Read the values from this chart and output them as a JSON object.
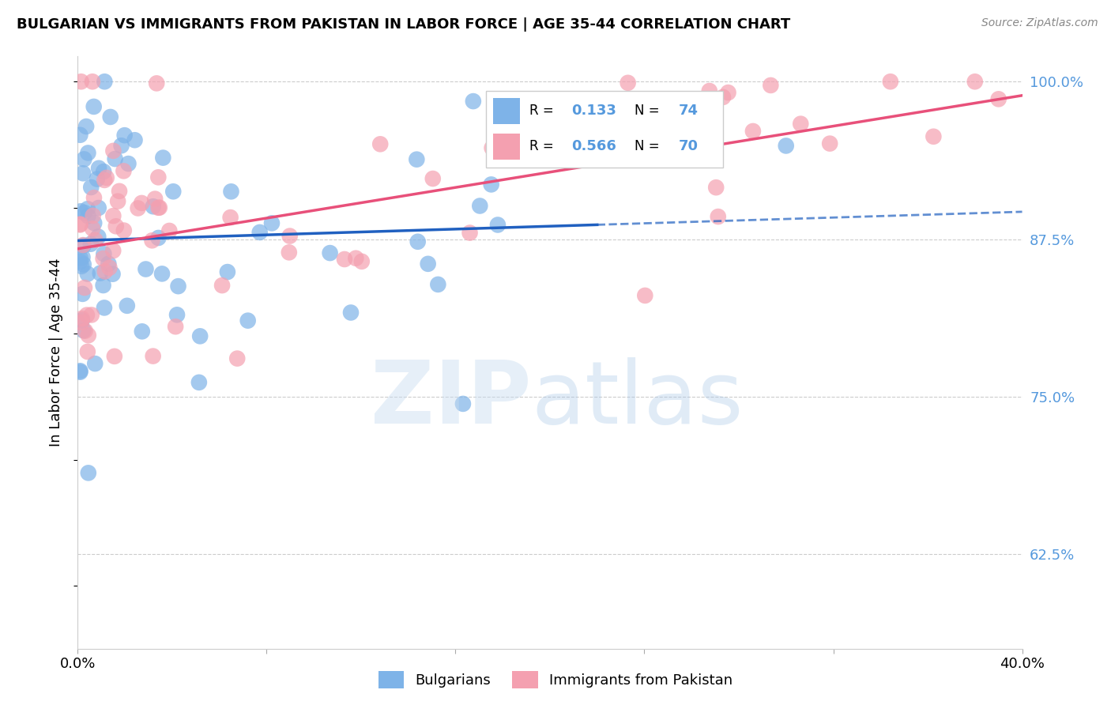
{
  "title": "BULGARIAN VS IMMIGRANTS FROM PAKISTAN IN LABOR FORCE | AGE 35-44 CORRELATION CHART",
  "source": "Source: ZipAtlas.com",
  "ylabel": "In Labor Force | Age 35-44",
  "xlim": [
    0.0,
    0.4
  ],
  "ylim": [
    0.55,
    1.02
  ],
  "yticks": [
    0.625,
    0.75,
    0.875,
    1.0
  ],
  "ytick_labels": [
    "62.5%",
    "75.0%",
    "87.5%",
    "100.0%"
  ],
  "xticks": [
    0.0,
    0.08,
    0.16,
    0.24,
    0.32,
    0.4
  ],
  "blue_R": 0.133,
  "blue_N": 74,
  "pink_R": 0.566,
  "pink_N": 70,
  "blue_color": "#7EB3E8",
  "pink_color": "#F4A0B0",
  "blue_line_color": "#2060C0",
  "pink_line_color": "#E8507A",
  "right_tick_color": "#5599DD"
}
